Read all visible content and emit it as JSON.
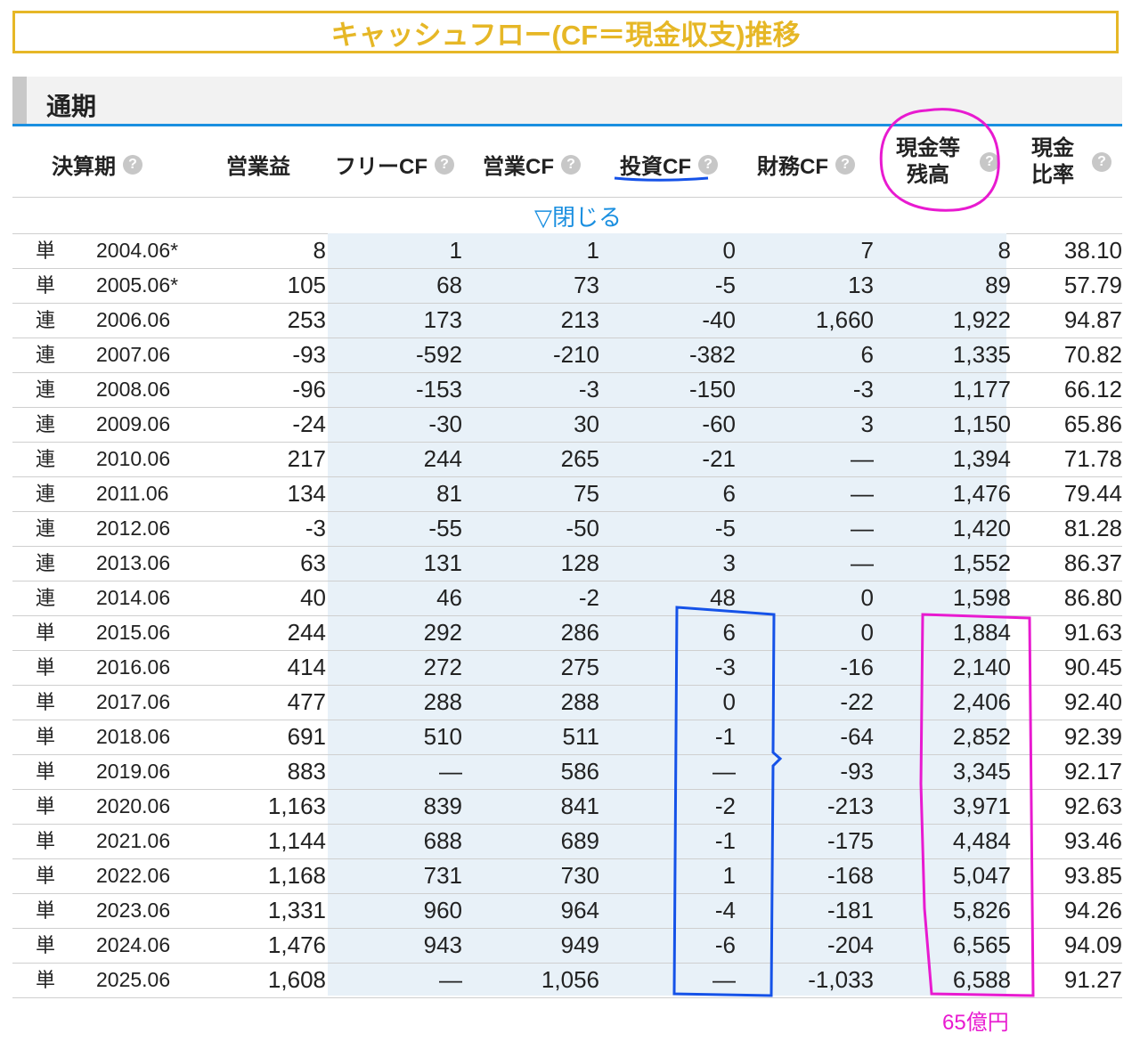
{
  "title": "キャッシュフロー(CF＝現金収支)推移",
  "section": "通期",
  "headers": {
    "period": "決算期",
    "operating_income": "営業益",
    "free_cf": "フリーCF",
    "operating_cf": "営業CF",
    "investing_cf": "投資CF",
    "financing_cf": "財務CF",
    "cash_line1": "現金等",
    "cash_line2": "残高",
    "ratio_line1": "現金",
    "ratio_line2": "比率",
    "help": "?"
  },
  "toggle": "▽閉じる",
  "rows": [
    {
      "type": "単",
      "period": "2004.06*",
      "op": "8",
      "free": "1",
      "opcf": "1",
      "inv": "0",
      "fin": "7",
      "cash": "8",
      "ratio": "38.10"
    },
    {
      "type": "単",
      "period": "2005.06*",
      "op": "105",
      "free": "68",
      "opcf": "73",
      "inv": "-5",
      "fin": "13",
      "cash": "89",
      "ratio": "57.79"
    },
    {
      "type": "連",
      "period": "2006.06",
      "op": "253",
      "free": "173",
      "opcf": "213",
      "inv": "-40",
      "fin": "1,660",
      "cash": "1,922",
      "ratio": "94.87"
    },
    {
      "type": "連",
      "period": "2007.06",
      "op": "-93",
      "free": "-592",
      "opcf": "-210",
      "inv": "-382",
      "fin": "6",
      "cash": "1,335",
      "ratio": "70.82"
    },
    {
      "type": "連",
      "period": "2008.06",
      "op": "-96",
      "free": "-153",
      "opcf": "-3",
      "inv": "-150",
      "fin": "-3",
      "cash": "1,177",
      "ratio": "66.12"
    },
    {
      "type": "連",
      "period": "2009.06",
      "op": "-24",
      "free": "-30",
      "opcf": "30",
      "inv": "-60",
      "fin": "3",
      "cash": "1,150",
      "ratio": "65.86"
    },
    {
      "type": "連",
      "period": "2010.06",
      "op": "217",
      "free": "244",
      "opcf": "265",
      "inv": "-21",
      "fin": "—",
      "cash": "1,394",
      "ratio": "71.78"
    },
    {
      "type": "連",
      "period": "2011.06",
      "op": "134",
      "free": "81",
      "opcf": "75",
      "inv": "6",
      "fin": "—",
      "cash": "1,476",
      "ratio": "79.44"
    },
    {
      "type": "連",
      "period": "2012.06",
      "op": "-3",
      "free": "-55",
      "opcf": "-50",
      "inv": "-5",
      "fin": "—",
      "cash": "1,420",
      "ratio": "81.28"
    },
    {
      "type": "連",
      "period": "2013.06",
      "op": "63",
      "free": "131",
      "opcf": "128",
      "inv": "3",
      "fin": "—",
      "cash": "1,552",
      "ratio": "86.37"
    },
    {
      "type": "連",
      "period": "2014.06",
      "op": "40",
      "free": "46",
      "opcf": "-2",
      "inv": "48",
      "fin": "0",
      "cash": "1,598",
      "ratio": "86.80"
    },
    {
      "type": "単",
      "period": "2015.06",
      "op": "244",
      "free": "292",
      "opcf": "286",
      "inv": "6",
      "fin": "0",
      "cash": "1,884",
      "ratio": "91.63"
    },
    {
      "type": "単",
      "period": "2016.06",
      "op": "414",
      "free": "272",
      "opcf": "275",
      "inv": "-3",
      "fin": "-16",
      "cash": "2,140",
      "ratio": "90.45"
    },
    {
      "type": "単",
      "period": "2017.06",
      "op": "477",
      "free": "288",
      "opcf": "288",
      "inv": "0",
      "fin": "-22",
      "cash": "2,406",
      "ratio": "92.40"
    },
    {
      "type": "単",
      "period": "2018.06",
      "op": "691",
      "free": "510",
      "opcf": "511",
      "inv": "-1",
      "fin": "-64",
      "cash": "2,852",
      "ratio": "92.39"
    },
    {
      "type": "単",
      "period": "2019.06",
      "op": "883",
      "free": "—",
      "opcf": "586",
      "inv": "—",
      "fin": "-93",
      "cash": "3,345",
      "ratio": "92.17"
    },
    {
      "type": "単",
      "period": "2020.06",
      "op": "1,163",
      "free": "839",
      "opcf": "841",
      "inv": "-2",
      "fin": "-213",
      "cash": "3,971",
      "ratio": "92.63"
    },
    {
      "type": "単",
      "period": "2021.06",
      "op": "1,144",
      "free": "688",
      "opcf": "689",
      "inv": "-1",
      "fin": "-175",
      "cash": "4,484",
      "ratio": "93.46"
    },
    {
      "type": "単",
      "period": "2022.06",
      "op": "1,168",
      "free": "731",
      "opcf": "730",
      "inv": "1",
      "fin": "-168",
      "cash": "5,047",
      "ratio": "93.85"
    },
    {
      "type": "単",
      "period": "2023.06",
      "op": "1,331",
      "free": "960",
      "opcf": "964",
      "inv": "-4",
      "fin": "-181",
      "cash": "5,826",
      "ratio": "94.26"
    },
    {
      "type": "単",
      "period": "2024.06",
      "op": "1,476",
      "free": "943",
      "opcf": "949",
      "inv": "-6",
      "fin": "-204",
      "cash": "6,565",
      "ratio": "94.09"
    },
    {
      "type": "単",
      "period": "2025.06",
      "op": "1,608",
      "free": "—",
      "opcf": "1,056",
      "inv": "—",
      "fin": "-1,033",
      "cash": "6,588",
      "ratio": "91.27"
    }
  ],
  "annotation": {
    "note": "65億円",
    "pink": "#e81ad0",
    "blue": "#1552e8"
  }
}
